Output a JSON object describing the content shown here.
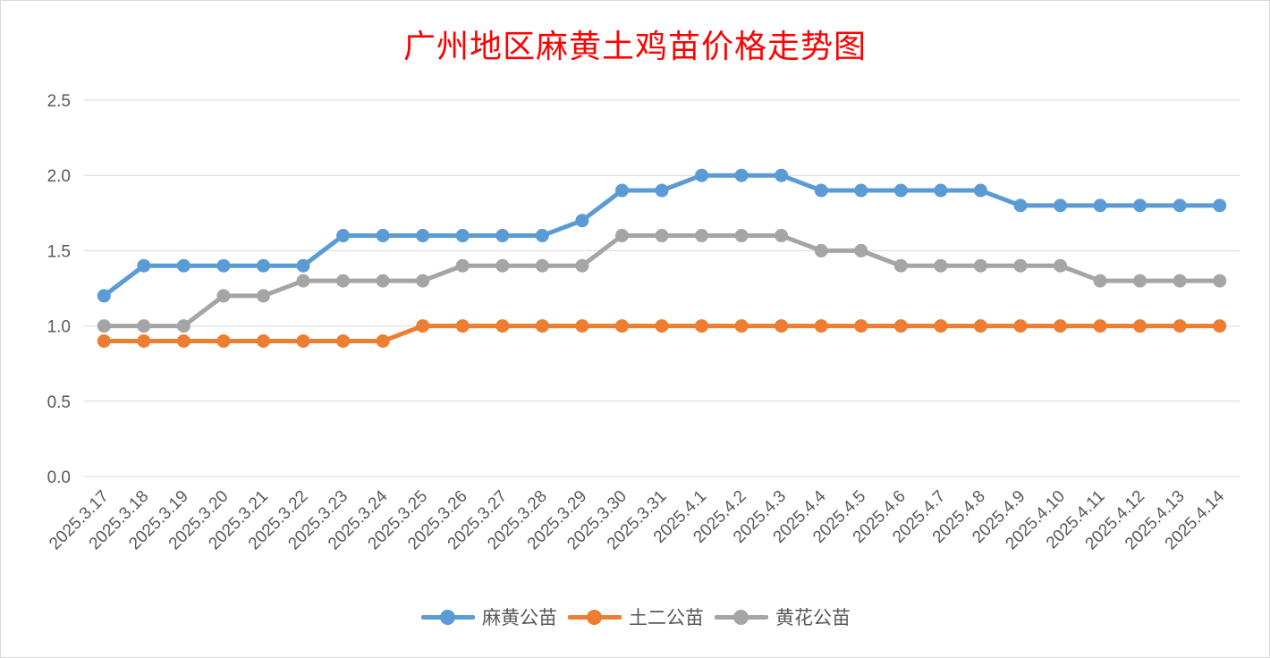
{
  "chart_data": {
    "type": "line",
    "title": "广州地区麻黄土鸡苗价格走势图",
    "xlabel": "",
    "ylabel": "",
    "ylim": [
      0,
      2.5
    ],
    "yticks": [
      "0.0",
      "0.5",
      "1.0",
      "1.5",
      "2.0",
      "2.5"
    ],
    "grid": true,
    "legend_position": "bottom",
    "categories": [
      "2025.3.17",
      "2025.3.18",
      "2025.3.19",
      "2025.3.20",
      "2025.3.21",
      "2025.3.22",
      "2025.3.23",
      "2025.3.24",
      "2025.3.25",
      "2025.3.26",
      "2025.3.27",
      "2025.3.28",
      "2025.3.29",
      "2025.3.30",
      "2025.3.31",
      "2025.4.1",
      "2025.4.2",
      "2025.4.3",
      "2025.4.4",
      "2025.4.5",
      "2025.4.6",
      "2025.4.7",
      "2025.4.8",
      "2025.4.9",
      "2025.4.10",
      "2025.4.11",
      "2025.4.12",
      "2025.4.13",
      "2025.4.14"
    ],
    "series": [
      {
        "name": "麻黄公苗",
        "color": "#5b9bd5",
        "values": [
          1.2,
          1.4,
          1.4,
          1.4,
          1.4,
          1.4,
          1.6,
          1.6,
          1.6,
          1.6,
          1.6,
          1.6,
          1.7,
          1.9,
          1.9,
          2.0,
          2.0,
          2.0,
          1.9,
          1.9,
          1.9,
          1.9,
          1.9,
          1.8,
          1.8,
          1.8,
          1.8,
          1.8,
          1.8
        ]
      },
      {
        "name": "土二公苗",
        "color": "#ed7d31",
        "values": [
          0.9,
          0.9,
          0.9,
          0.9,
          0.9,
          0.9,
          0.9,
          0.9,
          1.0,
          1.0,
          1.0,
          1.0,
          1.0,
          1.0,
          1.0,
          1.0,
          1.0,
          1.0,
          1.0,
          1.0,
          1.0,
          1.0,
          1.0,
          1.0,
          1.0,
          1.0,
          1.0,
          1.0,
          1.0
        ]
      },
      {
        "name": "黄花公苗",
        "color": "#a5a5a5",
        "values": [
          1.0,
          1.0,
          1.0,
          1.2,
          1.2,
          1.3,
          1.3,
          1.3,
          1.3,
          1.4,
          1.4,
          1.4,
          1.4,
          1.6,
          1.6,
          1.6,
          1.6,
          1.6,
          1.5,
          1.5,
          1.4,
          1.4,
          1.4,
          1.4,
          1.4,
          1.3,
          1.3,
          1.3,
          1.3
        ]
      }
    ]
  }
}
